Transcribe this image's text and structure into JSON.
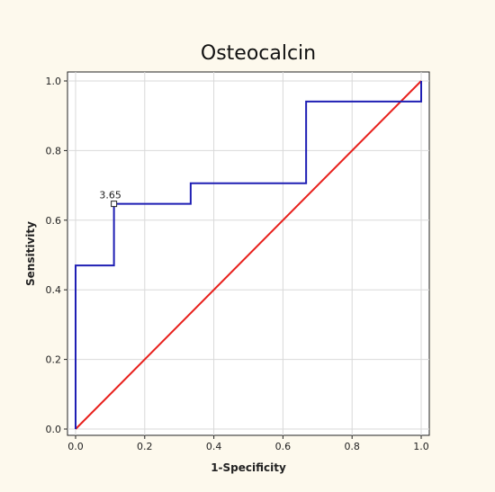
{
  "chart_data": {
    "type": "line",
    "title": "Osteocalcin",
    "xlabel": "1-Specificity",
    "ylabel": "Sensitivity",
    "xlim": [
      0,
      1
    ],
    "ylim": [
      0,
      1
    ],
    "x_ticks": [
      "0.0",
      "0.2",
      "0.4",
      "0.6",
      "0.8",
      "1.0"
    ],
    "y_ticks": [
      "0.0",
      "0.2",
      "0.4",
      "0.6",
      "0.8",
      "1.0"
    ],
    "grid": true,
    "series": [
      {
        "color": "#1f1fb4",
        "step": true,
        "points": [
          [
            0.0,
            0.0
          ],
          [
            0.0,
            0.47
          ],
          [
            0.111,
            0.47
          ],
          [
            0.111,
            0.647
          ],
          [
            0.333,
            0.647
          ],
          [
            0.333,
            0.706
          ],
          [
            0.667,
            0.706
          ],
          [
            0.667,
            0.941
          ],
          [
            1.0,
            0.941
          ],
          [
            1.0,
            1.0
          ]
        ]
      },
      {
        "color": "#e8201c",
        "points": [
          [
            0,
            0
          ],
          [
            1,
            1
          ]
        ]
      }
    ],
    "annotations": [
      {
        "text": "3.65",
        "x": 0.111,
        "y": 0.647
      }
    ]
  }
}
